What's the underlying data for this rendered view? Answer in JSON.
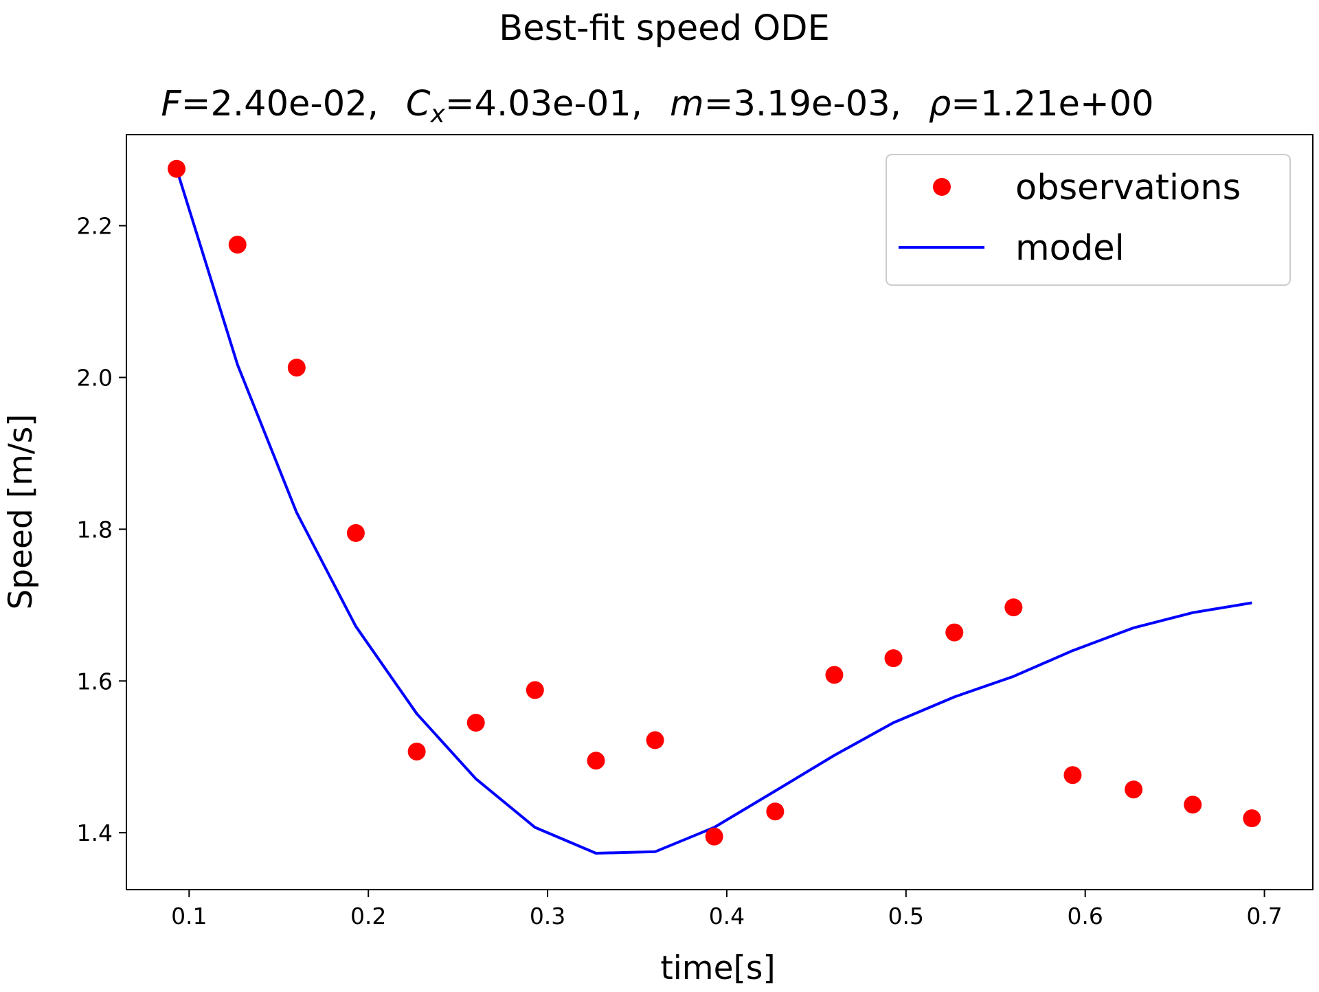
{
  "chart_data": {
    "type": "scatter",
    "title": "Best-fit speed ODE",
    "subtitle": {
      "parts": [
        {
          "sym": "F",
          "sub": "",
          "value": "=2.40e-02,"
        },
        {
          "sym": "C",
          "sub": "x",
          "value": "=4.03e-01,"
        },
        {
          "sym": "m",
          "sub": "",
          "value": "=3.19e-03,"
        },
        {
          "sym": "ρ",
          "sub": "",
          "value": "=1.21e+00"
        }
      ]
    },
    "xlabel": "time[s]",
    "ylabel": "Speed [m/s]",
    "xlim": [
      0.065,
      0.727
    ],
    "ylim": [
      1.325,
      2.32
    ],
    "xticks": [
      {
        "value": 0.1,
        "label": "0.1"
      },
      {
        "value": 0.2,
        "label": "0.2"
      },
      {
        "value": 0.3,
        "label": "0.3"
      },
      {
        "value": 0.4,
        "label": "0.4"
      },
      {
        "value": 0.5,
        "label": "0.5"
      },
      {
        "value": 0.6,
        "label": "0.6"
      },
      {
        "value": 0.7,
        "label": "0.7"
      }
    ],
    "yticks": [
      {
        "value": 1.4,
        "label": "1.4"
      },
      {
        "value": 1.6,
        "label": "1.6"
      },
      {
        "value": 1.8,
        "label": "1.8"
      },
      {
        "value": 2.0,
        "label": "2.0"
      },
      {
        "value": 2.2,
        "label": "2.2"
      }
    ],
    "grid": false,
    "legend_position": "top-right",
    "series": [
      {
        "name": "observations",
        "kind": "scatter",
        "color": "#ff0000",
        "x": [
          0.093,
          0.127,
          0.16,
          0.193,
          0.227,
          0.26,
          0.293,
          0.327,
          0.36,
          0.393,
          0.427,
          0.46,
          0.493,
          0.527,
          0.56,
          0.593,
          0.627,
          0.66,
          0.693
        ],
        "y": [
          2.275,
          2.175,
          2.013,
          1.795,
          1.507,
          1.545,
          1.588,
          1.495,
          1.522,
          1.395,
          1.428,
          1.608,
          1.63,
          1.664,
          1.697,
          1.476,
          1.457,
          1.437,
          1.419
        ]
      },
      {
        "name": "model",
        "kind": "line",
        "color": "#0000ff",
        "x": [
          0.093,
          0.127,
          0.16,
          0.193,
          0.227,
          0.26,
          0.293,
          0.327,
          0.36,
          0.393,
          0.427,
          0.46,
          0.493,
          0.527,
          0.56,
          0.593,
          0.627,
          0.66,
          0.693
        ],
        "y": [
          2.275,
          2.017,
          1.822,
          1.672,
          1.557,
          1.471,
          1.407,
          1.373,
          1.375,
          1.407,
          1.455,
          1.502,
          1.545,
          1.579,
          1.606,
          1.64,
          1.67,
          1.69,
          1.703
        ]
      }
    ]
  }
}
